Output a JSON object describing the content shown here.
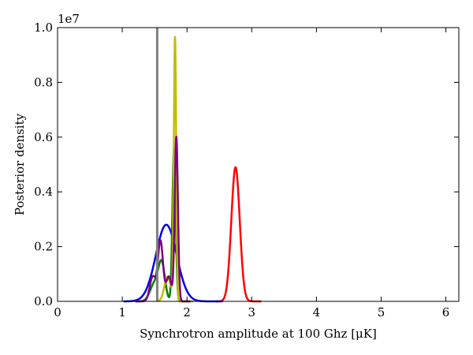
{
  "chart_data": {
    "type": "line",
    "title": "",
    "xlabel": "Synchrotron amplitude at 100 Ghz [μK]",
    "ylabel": "Posterior density",
    "y_offset_label": "1e7",
    "xlim": [
      0,
      6.2
    ],
    "ylim": [
      0,
      1.0
    ],
    "y_scale_factor": 10000000,
    "x_ticks": [
      0,
      1,
      2,
      3,
      4,
      5,
      6
    ],
    "x_tick_labels": [
      "0",
      "1",
      "2",
      "3",
      "4",
      "5",
      "6"
    ],
    "y_ticks": [
      0.0,
      0.2,
      0.4,
      0.6,
      0.8,
      1.0
    ],
    "y_tick_labels": [
      "0.0",
      "0.2",
      "0.4",
      "0.6",
      "0.8",
      "1.0"
    ],
    "grid": false,
    "legend": "none",
    "vertical_line": {
      "x": 1.54,
      "color": "#808080"
    },
    "series": [
      {
        "color": "#ff0000",
        "components": [
          {
            "mu": 2.75,
            "sigma": 0.065,
            "amp": 0.49
          }
        ],
        "range": [
          2.45,
          3.15
        ]
      },
      {
        "color": "#0000ee",
        "components": [
          {
            "mu": 1.68,
            "sigma": 0.16,
            "amp": 0.28
          }
        ],
        "range": [
          1.02,
          2.55
        ]
      },
      {
        "color": "#008000",
        "components": [
          {
            "mu": 1.5,
            "sigma": 0.07,
            "amp": 0.065
          },
          {
            "mu": 1.61,
            "sigma": 0.05,
            "amp": 0.13
          },
          {
            "mu": 1.8,
            "sigma": 0.025,
            "amp": 0.56
          }
        ],
        "range": [
          1.2,
          2.05
        ]
      },
      {
        "color": "#bfbf00",
        "components": [
          {
            "mu": 1.7,
            "sigma": 0.05,
            "amp": 0.09
          },
          {
            "mu": 1.815,
            "sigma": 0.018,
            "amp": 0.96
          }
        ],
        "range": [
          1.55,
          2.1
        ]
      },
      {
        "color": "#800080",
        "components": [
          {
            "mu": 1.47,
            "sigma": 0.045,
            "amp": 0.09
          },
          {
            "mu": 1.59,
            "sigma": 0.04,
            "amp": 0.22
          },
          {
            "mu": 1.72,
            "sigma": 0.04,
            "amp": 0.09
          },
          {
            "mu": 1.835,
            "sigma": 0.025,
            "amp": 0.6
          }
        ],
        "range": [
          1.2,
          2.05
        ]
      }
    ]
  }
}
